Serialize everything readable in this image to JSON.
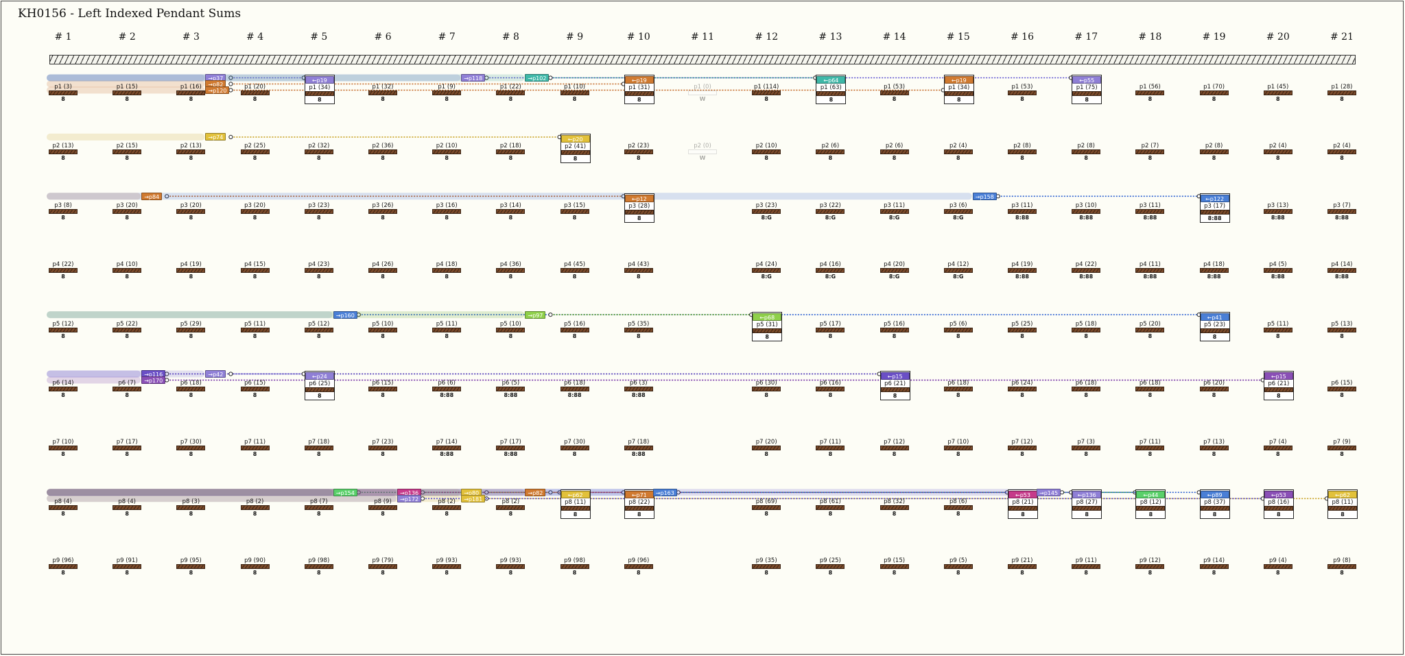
{
  "title": "KH0156 - Left Indexed Pendant Sums",
  "columns": [
    "# 1",
    "# 2",
    "# 3",
    "# 4",
    "# 5",
    "# 6",
    "# 7",
    "# 8",
    "# 9",
    "# 10",
    "# 11",
    "# 12",
    "# 13",
    "# 14",
    "# 15",
    "# 16",
    "# 17",
    "# 18",
    "# 19",
    "# 20",
    "# 21"
  ],
  "rows": [
    {
      "labels": [
        "p1 (3)",
        "p1 (15)",
        "p1 (16)",
        "p1 (20)",
        "p1 (34)",
        "p1 (32)",
        "p1 (9)",
        "p1 (22)",
        "p1 (10)",
        "p1 (31)",
        "p1 (0)",
        "p1 (114)",
        "p1 (63)",
        "p1 (53)",
        "p1 (34)",
        "p1 (53)",
        "p1 (75)",
        "p1 (56)",
        "p1 (70)",
        "p1 (45)",
        "p1 (28)"
      ],
      "codes": [
        "8",
        "8",
        "8",
        "8",
        "8",
        "8",
        "8",
        "8",
        "8",
        "8",
        "W",
        "8",
        "8",
        "8",
        "8",
        "8",
        "8",
        "8",
        "8",
        "8",
        "8"
      ]
    },
    {
      "labels": [
        "p2 (13)",
        "p2 (15)",
        "p2 (13)",
        "p2 (25)",
        "p2 (32)",
        "p2 (36)",
        "p2 (10)",
        "p2 (18)",
        "p2 (41)",
        "p2 (23)",
        "p2 (0)",
        "p2 (10)",
        "p2 (6)",
        "p2 (6)",
        "p2 (4)",
        "p2 (8)",
        "p2 (8)",
        "p2 (7)",
        "p2 (8)",
        "p2 (4)",
        "p2 (4)"
      ],
      "codes": [
        "8",
        "8",
        "8",
        "8",
        "8",
        "8",
        "8",
        "8",
        "8",
        "8",
        "W",
        "8",
        "8",
        "8",
        "8",
        "8",
        "8",
        "8",
        "8",
        "8",
        "8"
      ]
    },
    {
      "labels": [
        "p3 (8)",
        "p3 (20)",
        "p3 (20)",
        "p3 (20)",
        "p3 (23)",
        "p3 (26)",
        "p3 (16)",
        "p3 (14)",
        "p3 (15)",
        "p3 (28)",
        "",
        "p3 (23)",
        "p3 (22)",
        "p3 (11)",
        "p3 (6)",
        "p3 (11)",
        "p3 (10)",
        "p3 (11)",
        "p3 (17)",
        "p3 (13)",
        "p3 (7)"
      ],
      "codes": [
        "8",
        "8",
        "8",
        "8",
        "8",
        "8",
        "8",
        "8",
        "8",
        "8",
        "",
        "8:G",
        "8:G",
        "8:G",
        "8:G",
        "8:88",
        "8:88",
        "8:88",
        "8:88",
        "8:88",
        "8:88"
      ]
    },
    {
      "labels": [
        "p4 (22)",
        "p4 (10)",
        "p4 (19)",
        "p4 (15)",
        "p4 (23)",
        "p4 (26)",
        "p4 (18)",
        "p4 (36)",
        "p4 (45)",
        "p4 (43)",
        "",
        "p4 (24)",
        "p4 (16)",
        "p4 (20)",
        "p4 (12)",
        "p4 (19)",
        "p4 (22)",
        "p4 (11)",
        "p4 (18)",
        "p4 (5)",
        "p4 (14)"
      ],
      "codes": [
        "8",
        "8",
        "8",
        "8",
        "8",
        "8",
        "8",
        "8",
        "8",
        "8",
        "",
        "8:G",
        "8:G",
        "8:G",
        "8:G",
        "8:88",
        "8:88",
        "8:88",
        "8:88",
        "8:88",
        "8:88"
      ]
    },
    {
      "labels": [
        "p5 (12)",
        "p5 (22)",
        "p5 (29)",
        "p5 (11)",
        "p5 (12)",
        "p5 (10)",
        "p5 (11)",
        "p5 (10)",
        "p5 (16)",
        "p5 (35)",
        "",
        "p5 (31)",
        "p5 (17)",
        "p5 (16)",
        "p5 (6)",
        "p5 (25)",
        "p5 (18)",
        "p5 (20)",
        "p5 (23)",
        "p5 (11)",
        "p5 (13)"
      ],
      "codes": [
        "8",
        "8",
        "8",
        "8",
        "8",
        "8",
        "8",
        "8",
        "8",
        "8",
        "",
        "8",
        "8",
        "8",
        "8",
        "8",
        "8",
        "8",
        "8",
        "8",
        "8"
      ]
    },
    {
      "labels": [
        "p6 (14)",
        "p6 (7)",
        "p6 (18)",
        "p6 (15)",
        "p6 (25)",
        "p6 (15)",
        "p6 (6)",
        "p6 (5)",
        "p6 (18)",
        "p6 (3)",
        "",
        "p6 (30)",
        "p6 (16)",
        "p6 (21)",
        "p6 (18)",
        "p6 (24)",
        "p6 (18)",
        "p6 (18)",
        "p6 (20)",
        "p6 (21)",
        "p6 (15)"
      ],
      "codes": [
        "8",
        "8",
        "8",
        "8",
        "8",
        "8",
        "8:88",
        "8:88",
        "8:88",
        "8:88",
        "",
        "8",
        "8",
        "8",
        "8",
        "8",
        "8",
        "8",
        "8",
        "8",
        "8"
      ]
    },
    {
      "labels": [
        "p7 (10)",
        "p7 (17)",
        "p7 (30)",
        "p7 (11)",
        "p7 (18)",
        "p7 (23)",
        "p7 (14)",
        "p7 (17)",
        "p7 (30)",
        "p7 (18)",
        "",
        "p7 (20)",
        "p7 (11)",
        "p7 (12)",
        "p7 (10)",
        "p7 (12)",
        "p7 (3)",
        "p7 (11)",
        "p7 (13)",
        "p7 (4)",
        "p7 (9)"
      ],
      "codes": [
        "8",
        "8",
        "8",
        "8",
        "8",
        "8",
        "8:88",
        "8:88",
        "8",
        "8:88",
        "",
        "8",
        "8",
        "8",
        "8",
        "8",
        "8",
        "8",
        "8",
        "8",
        "8"
      ]
    },
    {
      "labels": [
        "p8 (4)",
        "p8 (4)",
        "p8 (3)",
        "p8 (2)",
        "p8 (7)",
        "p8 (9)",
        "p8 (2)",
        "p8 (2)",
        "p8 (11)",
        "p8 (22)",
        "",
        "p8 (69)",
        "p8 (61)",
        "p8 (32)",
        "p8 (6)",
        "p8 (21)",
        "p8 (27)",
        "p8 (12)",
        "p8 (37)",
        "p8 (16)",
        "p8 (11)"
      ],
      "codes": [
        "8",
        "8",
        "8",
        "8",
        "8",
        "8",
        "8",
        "8",
        "8",
        "8",
        "",
        "8",
        "8",
        "8",
        "8",
        "8",
        "8",
        "8",
        "8",
        "8",
        "8"
      ]
    },
    {
      "labels": [
        "p9 (96)",
        "p9 (91)",
        "p9 (95)",
        "p9 (90)",
        "p9 (98)",
        "p9 (79)",
        "p9 (93)",
        "p9 (93)",
        "p9 (98)",
        "p9 (96)",
        "",
        "p9 (35)",
        "p9 (25)",
        "p9 (15)",
        "p9 (5)",
        "p9 (21)",
        "p9 (11)",
        "p9 (12)",
        "p9 (14)",
        "p9 (4)",
        "p9 (8)"
      ],
      "codes": [
        "8",
        "8",
        "8",
        "8",
        "8",
        "8",
        "8",
        "8",
        "8",
        "8",
        "",
        "8",
        "8",
        "8",
        "8",
        "8",
        "8",
        "8",
        "8",
        "8",
        "8"
      ]
    }
  ],
  "boxed": [
    [
      1,
      5
    ],
    [
      1,
      10
    ],
    [
      1,
      13
    ],
    [
      1,
      15
    ],
    [
      1,
      17
    ],
    [
      2,
      9
    ],
    [
      3,
      10
    ],
    [
      3,
      19
    ],
    [
      5,
      12
    ],
    [
      5,
      19
    ],
    [
      6,
      5
    ],
    [
      6,
      14
    ],
    [
      6,
      20
    ],
    [
      8,
      9
    ],
    [
      8,
      10
    ],
    [
      8,
      16
    ],
    [
      8,
      17
    ],
    [
      8,
      18
    ],
    [
      8,
      19
    ],
    [
      8,
      20
    ],
    [
      8,
      21
    ]
  ],
  "ghost": [
    [
      1,
      11
    ],
    [
      2,
      11
    ]
  ],
  "sums": [
    {
      "row": 1,
      "col": 5,
      "text": "←p19",
      "color": "#8f7fd6",
      "side": "in"
    },
    {
      "row": 1,
      "col": 10,
      "text": "←p19",
      "color": "#d07a30",
      "side": "in"
    },
    {
      "row": 1,
      "col": 13,
      "text": "←p64",
      "color": "#3fb8a8",
      "side": "in"
    },
    {
      "row": 1,
      "col": 15,
      "text": "←p19",
      "color": "#d07a30",
      "side": "in"
    },
    {
      "row": 1,
      "col": 17,
      "text": "←p55",
      "color": "#8f7fd6",
      "side": "in"
    },
    {
      "row": 2,
      "col": 9,
      "text": "←p20",
      "color": "#e2c13a",
      "side": "in"
    },
    {
      "row": 3,
      "col": 10,
      "text": "←p12",
      "color": "#d07a30",
      "side": "in"
    },
    {
      "row": 3,
      "col": 19,
      "text": "←p122",
      "color": "#4a7fd6",
      "side": "in"
    },
    {
      "row": 5,
      "col": 12,
      "text": "←p68",
      "color": "#8fd04a",
      "side": "in"
    },
    {
      "row": 5,
      "col": 19,
      "text": "←p41",
      "color": "#4a7fd6",
      "side": "in"
    },
    {
      "row": 6,
      "col": 5,
      "text": "←p24",
      "color": "#8f7fd6",
      "side": "in"
    },
    {
      "row": 6,
      "col": 14,
      "text": "←p15",
      "color": "#6a4fc6",
      "side": "in"
    },
    {
      "row": 6,
      "col": 20,
      "text": "←p15",
      "color": "#8a4fb6",
      "side": "in"
    },
    {
      "row": 8,
      "col": 9,
      "text": "←p62",
      "color": "#e2c13a",
      "side": "in"
    },
    {
      "row": 8,
      "col": 10,
      "text": "←p71",
      "color": "#d07a30",
      "side": "in"
    },
    {
      "row": 8,
      "col": 16,
      "text": "←p53",
      "color": "#c63a8a",
      "side": "in"
    },
    {
      "row": 8,
      "col": 17,
      "text": "←p136",
      "color": "#8f7fd6",
      "side": "in"
    },
    {
      "row": 8,
      "col": 18,
      "text": "←p44",
      "color": "#5ad06a",
      "side": "in"
    },
    {
      "row": 8,
      "col": 19,
      "text": "←p89",
      "color": "#4a7fd6",
      "side": "in"
    },
    {
      "row": 8,
      "col": 20,
      "text": "←p53",
      "color": "#8a4fb6",
      "side": "in"
    },
    {
      "row": 8,
      "col": 21,
      "text": "←p62",
      "color": "#e2c13a",
      "side": "in"
    }
  ],
  "outs": [
    {
      "row": 1,
      "col": 3,
      "text": "→p37",
      "color": "#8f7fd6",
      "dy": -13
    },
    {
      "row": 1,
      "col": 3,
      "text": "→p82",
      "color": "#d07a30",
      "dy": -4
    },
    {
      "row": 1,
      "col": 3,
      "text": "→p120",
      "color": "#d07a30",
      "dy": 5
    },
    {
      "row": 1,
      "col": 7,
      "text": "→p118",
      "color": "#8f7fd6",
      "dy": -13
    },
    {
      "row": 1,
      "col": 8,
      "text": "→p102",
      "color": "#3fb8a8",
      "dy": -13
    },
    {
      "row": 2,
      "col": 3,
      "text": "→p74",
      "color": "#e2c13a",
      "dy": -13
    },
    {
      "row": 3,
      "col": 2,
      "text": "→p84",
      "color": "#d07a30",
      "dy": -13
    },
    {
      "row": 3,
      "col": 15,
      "text": "→p158",
      "color": "#4a7fd6",
      "dy": -13
    },
    {
      "row": 5,
      "col": 5,
      "text": "→p160",
      "color": "#4a7fd6",
      "dy": -13
    },
    {
      "row": 5,
      "col": 8,
      "text": "→p97",
      "color": "#8fd04a",
      "dy": -13
    },
    {
      "row": 6,
      "col": 2,
      "text": "→p116",
      "color": "#6a4fc6",
      "dy": -13
    },
    {
      "row": 6,
      "col": 2,
      "text": "→p170",
      "color": "#8a4fb6",
      "dy": -4
    },
    {
      "row": 6,
      "col": 3,
      "text": "→p42",
      "color": "#8f7fd6",
      "dy": -13
    },
    {
      "row": 8,
      "col": 5,
      "text": "→p154",
      "color": "#5ad06a",
      "dy": -13
    },
    {
      "row": 8,
      "col": 6,
      "text": "→p136",
      "color": "#c63a8a",
      "dy": -13
    },
    {
      "row": 8,
      "col": 6,
      "text": "→p172",
      "color": "#8f7fd6",
      "dy": -4
    },
    {
      "row": 8,
      "col": 7,
      "text": "→p80",
      "color": "#e2c13a",
      "dy": -13
    },
    {
      "row": 8,
      "col": 7,
      "text": "→p181",
      "color": "#e2c13a",
      "dy": -4
    },
    {
      "row": 8,
      "col": 8,
      "text": "→p82",
      "color": "#d07a30",
      "dy": -13
    },
    {
      "row": 8,
      "col": 10,
      "text": "→p163",
      "color": "#4a7fd6",
      "dy": -13
    },
    {
      "row": 8,
      "col": 16,
      "text": "→p145",
      "color": "#8f7fd6",
      "dy": -13
    }
  ],
  "links": [
    {
      "fromRow": 1,
      "fromCol": 3,
      "dy": -13,
      "toRow": 1,
      "toCol": 5,
      "color": "#6a5fd0"
    },
    {
      "fromRow": 1,
      "fromCol": 3,
      "dy": -4,
      "toRow": 1,
      "toCol": 10,
      "color": "#c0601a"
    },
    {
      "fromRow": 1,
      "fromCol": 3,
      "dy": 5,
      "toRow": 1,
      "toCol": 15,
      "color": "#c0601a"
    },
    {
      "fromRow": 1,
      "fromCol": 7,
      "dy": -13,
      "toRow": 1,
      "toCol": 17,
      "color": "#5a4fd0"
    },
    {
      "fromRow": 1,
      "fromCol": 8,
      "dy": -13,
      "toRow": 1,
      "toCol": 13,
      "color": "#2a9888"
    },
    {
      "fromRow": 2,
      "fromCol": 3,
      "dy": -13,
      "toRow": 2,
      "toCol": 9,
      "color": "#c8a020"
    },
    {
      "fromRow": 3,
      "fromCol": 2,
      "dy": -13,
      "toRow": 3,
      "toCol": 10,
      "color": "#c0601a"
    },
    {
      "fromRow": 3,
      "fromCol": 15,
      "dy": -13,
      "toRow": 3,
      "toCol": 19,
      "color": "#2a5fd0"
    },
    {
      "fromRow": 5,
      "fromCol": 5,
      "dy": -13,
      "toRow": 5,
      "toCol": 19,
      "color": "#2a5fd0"
    },
    {
      "fromRow": 5,
      "fromCol": 8,
      "dy": -13,
      "toRow": 5,
      "toCol": 12,
      "color": "#5aa020"
    },
    {
      "fromRow": 6,
      "fromCol": 2,
      "dy": -13,
      "toRow": 6,
      "toCol": 14,
      "color": "#3a20b0"
    },
    {
      "fromRow": 6,
      "fromCol": 2,
      "dy": -4,
      "toRow": 6,
      "toCol": 20,
      "color": "#6a20a0"
    },
    {
      "fromRow": 6,
      "fromCol": 3,
      "dy": -13,
      "toRow": 6,
      "toCol": 5,
      "color": "#6a5fd0"
    },
    {
      "fromRow": 8,
      "fromCol": 5,
      "dy": -13,
      "toRow": 8,
      "toCol": 18,
      "color": "#2a9848"
    },
    {
      "fromRow": 8,
      "fromCol": 6,
      "dy": -13,
      "toRow": 8,
      "toCol": 16,
      "color": "#a01a6a"
    },
    {
      "fromRow": 8,
      "fromCol": 7,
      "dy": -13,
      "toRow": 8,
      "toCol": 9,
      "color": "#c8a020"
    },
    {
      "fromRow": 8,
      "fromCol": 7,
      "dy": -4,
      "toRow": 8,
      "toCol": 21,
      "color": "#c8a020"
    },
    {
      "fromRow": 8,
      "fromCol": 8,
      "dy": -13,
      "toRow": 8,
      "toCol": 10,
      "color": "#c0601a"
    },
    {
      "fromRow": 8,
      "fromCol": 10,
      "dy": -13,
      "toRow": 8,
      "toCol": 19,
      "color": "#2a5fd0"
    },
    {
      "fromRow": 8,
      "fromCol": 16,
      "dy": -13,
      "toRow": 8,
      "toCol": 17,
      "color": "#5a4fd0"
    },
    {
      "fromRow": 8,
      "fromCol": 6,
      "dy": -4,
      "toRow": 8,
      "toCol": 20,
      "color": "#5a4fd0"
    }
  ]
}
